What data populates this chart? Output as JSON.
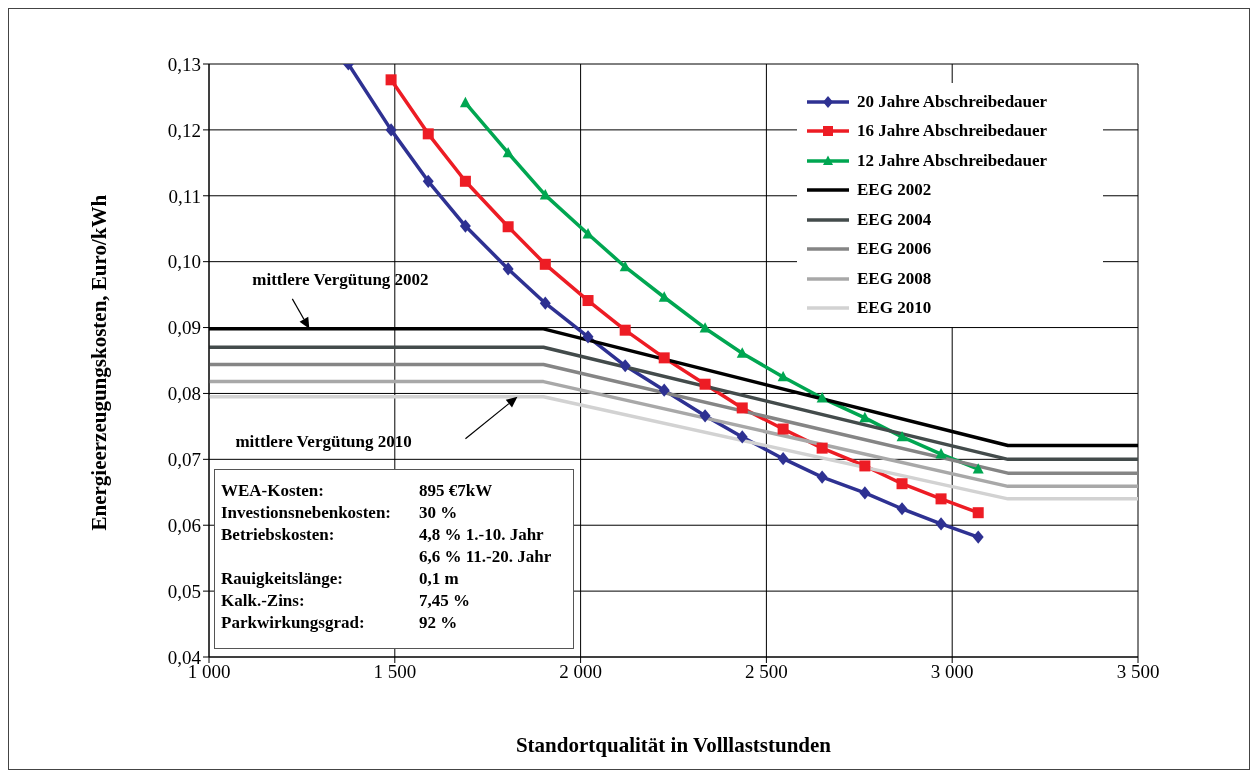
{
  "chart_data": {
    "type": "line",
    "xlabel": "Standortqualität in Volllaststunden",
    "ylabel": "Energieerzeugungskosten, Euro/kWh",
    "xlim": [
      1000,
      3500
    ],
    "xticks": [
      {
        "value": 1000,
        "label": "1 000"
      },
      {
        "value": 1500,
        "label": "1 500"
      },
      {
        "value": 2000,
        "label": "2 000"
      },
      {
        "value": 2500,
        "label": "2 500"
      },
      {
        "value": 3000,
        "label": "3 000"
      },
      {
        "value": 3500,
        "label": "3 500"
      }
    ],
    "ylim": [
      0.04,
      0.13
    ],
    "yticks": [
      {
        "value": 0.04,
        "label": "0,04"
      },
      {
        "value": 0.05,
        "label": "0,05"
      },
      {
        "value": 0.06,
        "label": "0,06"
      },
      {
        "value": 0.07,
        "label": "0,07"
      },
      {
        "value": 0.08,
        "label": "0,08"
      },
      {
        "value": 0.09,
        "label": "0,09"
      },
      {
        "value": 0.1,
        "label": "0,10"
      },
      {
        "value": 0.11,
        "label": "0,11"
      },
      {
        "value": 0.12,
        "label": "0,12"
      },
      {
        "value": 0.13,
        "label": "0,13"
      }
    ],
    "grid": true,
    "legend": "top right",
    "line_style": "solid",
    "series": [
      {
        "name": "20 Jahre Abschreibedauer",
        "color": "#2e3192",
        "marker": "diamond",
        "x": [
          1375,
          1490,
          1590,
          1690,
          1805,
          1905,
          2020,
          2120,
          2225,
          2335,
          2435,
          2545,
          2650,
          2765,
          2865,
          2970,
          3070
        ],
        "values": [
          0.13,
          0.12,
          0.1122,
          0.1054,
          0.0989,
          0.0937,
          0.0886,
          0.0842,
          0.0805,
          0.0766,
          0.0734,
          0.0701,
          0.0673,
          0.0649,
          0.0625,
          0.0602,
          0.0582
        ]
      },
      {
        "name": "16 Jahre Abschreibedauer",
        "color": "#ed1c24",
        "marker": "square",
        "x": [
          1490,
          1590,
          1690,
          1805,
          1905,
          2020,
          2120,
          2225,
          2335,
          2435,
          2545,
          2650,
          2765,
          2865,
          2970,
          3070
        ],
        "values": [
          0.1276,
          0.1194,
          0.1122,
          0.1053,
          0.0996,
          0.0941,
          0.0896,
          0.0854,
          0.0814,
          0.0778,
          0.0746,
          0.0717,
          0.069,
          0.0663,
          0.064,
          0.0619
        ]
      },
      {
        "name": "12 Jahre Abschreibedauer",
        "color": "#00a651",
        "marker": "triangle",
        "x": [
          1690,
          1805,
          1905,
          2020,
          2120,
          2225,
          2335,
          2435,
          2545,
          2650,
          2765,
          2865,
          2970,
          3070
        ],
        "values": [
          0.1241,
          0.1165,
          0.1101,
          0.1042,
          0.0992,
          0.0946,
          0.0899,
          0.0861,
          0.0825,
          0.0793,
          0.0763,
          0.0734,
          0.0708,
          0.0685
        ]
      },
      {
        "name": "EEG 2002",
        "color": "#000000",
        "marker": "none",
        "x": [
          1000,
          1900,
          3150,
          3500
        ],
        "values": [
          0.0898,
          0.0898,
          0.0721,
          0.0721
        ]
      },
      {
        "name": "EEG 2004",
        "color": "#434b4b",
        "marker": "none",
        "x": [
          1000,
          1900,
          3150,
          3500
        ],
        "values": [
          0.087,
          0.087,
          0.07,
          0.07
        ]
      },
      {
        "name": "EEG 2006",
        "color": "#858585",
        "marker": "none",
        "x": [
          1000,
          1900,
          3150,
          3500
        ],
        "values": [
          0.0844,
          0.0844,
          0.0679,
          0.0679
        ]
      },
      {
        "name": "EEG 2008",
        "color": "#a8a8a8",
        "marker": "none",
        "x": [
          1000,
          1900,
          3150,
          3500
        ],
        "values": [
          0.0818,
          0.0818,
          0.0659,
          0.0659
        ]
      },
      {
        "name": "EEG 2010",
        "color": "#d2d2d2",
        "marker": "none",
        "x": [
          1000,
          1900,
          3150,
          3500
        ],
        "values": [
          0.0795,
          0.0795,
          0.064,
          0.064
        ]
      }
    ],
    "annotations": [
      {
        "text": "mittlere Vergütung 2002",
        "x": 1270,
        "y": 0.0898
      },
      "mittlere Vergütung 2010",
      "WEA-Kosten:\t895 €7kW",
      "Investionsnebenkosten:\t30 %",
      "Betriebskosten:\t4,8 %   1.-10. Jahr",
      "\t6,6 % 11.-20. Jahr",
      "Rauigkeitslänge:\t0,1 m",
      "Kalk.-Zins:\t7,45 %",
      "Parkwirkungsgrad:\t92 %"
    ]
  }
}
